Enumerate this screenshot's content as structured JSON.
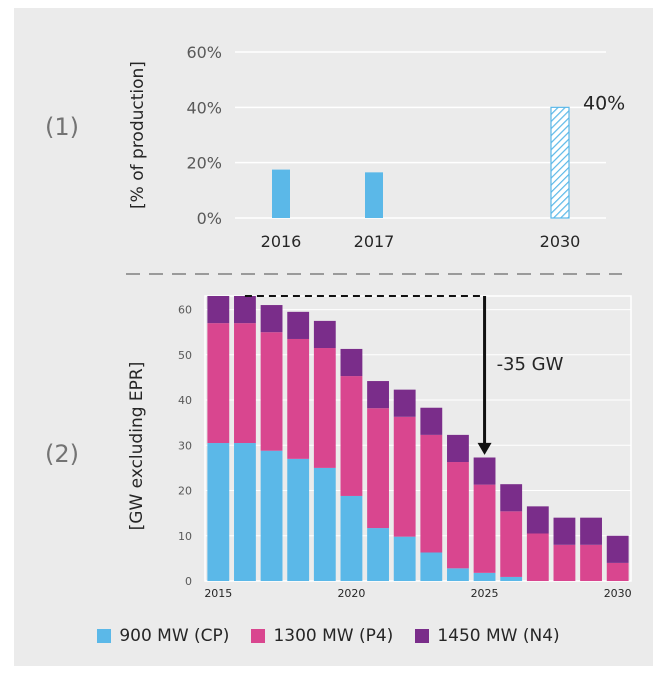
{
  "colors": {
    "cp": "#5bb8e8",
    "p4": "#d9468f",
    "n4": "#7a2d8a",
    "grid": "#ffffff",
    "arrow": "#111111",
    "hatch": "#5bb8e8"
  },
  "panels": {
    "top_label": "(1)",
    "bottom_label": "(2)"
  },
  "chart_data": [
    {
      "type": "bar",
      "title": "",
      "xlabel": "",
      "ylabel": "[% of production]",
      "categories": [
        "2016",
        "2017",
        "2030"
      ],
      "values": [
        17.5,
        16.5,
        40
      ],
      "value_format": "percent",
      "yticks": [
        "0%",
        "20%",
        "40%",
        "60%"
      ],
      "ylim": [
        0,
        60
      ],
      "grid": true,
      "annotations": [
        {
          "category": "2030",
          "text": "40%",
          "style": "hatched target bar"
        }
      ]
    },
    {
      "type": "bar",
      "stacked": true,
      "title": "",
      "xlabel": "",
      "ylabel": "[GW excluding EPR]",
      "x": [
        2015,
        2016,
        2017,
        2018,
        2019,
        2020,
        2021,
        2022,
        2023,
        2024,
        2025,
        2026,
        2027,
        2028,
        2029,
        2030
      ],
      "xticks": [
        "2015",
        "2020",
        "2025",
        "2030"
      ],
      "yticks": [
        "0",
        "10",
        "20",
        "30",
        "40",
        "50",
        "60"
      ],
      "ylim": [
        0,
        63
      ],
      "grid": true,
      "series": [
        {
          "name": "900 MW (CP)",
          "values": [
            30.5,
            30.5,
            28.8,
            27,
            25,
            18.8,
            11.7,
            9.8,
            6.3,
            2.8,
            1.8,
            0.9,
            0,
            0,
            0,
            0
          ]
        },
        {
          "name": "1300 MW (P4)",
          "values": [
            26.5,
            26.5,
            26.2,
            26.5,
            26.5,
            26.5,
            26.5,
            26.5,
            26,
            23.5,
            19.5,
            14.5,
            10.5,
            8,
            8,
            4
          ]
        },
        {
          "name": "1450 MW (N4)",
          "values": [
            6,
            6,
            6,
            6,
            6,
            6,
            6,
            6,
            6,
            6,
            6,
            6,
            6,
            6,
            6,
            6
          ]
        }
      ],
      "annotations": [
        {
          "text": "-35 GW",
          "from_x": 2016,
          "to_x": 2025,
          "from_value": 63,
          "to_value": 27
        }
      ],
      "legend_position": "bottom"
    }
  ]
}
